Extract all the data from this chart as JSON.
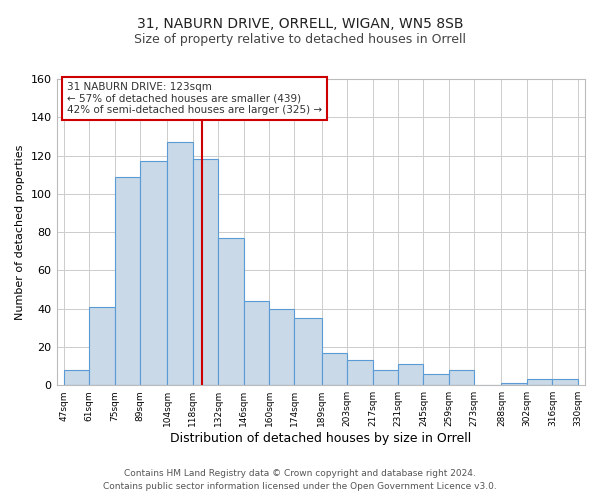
{
  "title1": "31, NABURN DRIVE, ORRELL, WIGAN, WN5 8SB",
  "title2": "Size of property relative to detached houses in Orrell",
  "xlabel": "Distribution of detached houses by size in Orrell",
  "ylabel": "Number of detached properties",
  "footer1": "Contains HM Land Registry data © Crown copyright and database right 2024.",
  "footer2": "Contains public sector information licensed under the Open Government Licence v3.0.",
  "bar_edges": [
    47,
    61,
    75,
    89,
    104,
    118,
    132,
    146,
    160,
    174,
    189,
    203,
    217,
    231,
    245,
    259,
    273,
    288,
    302,
    316,
    330
  ],
  "bar_heights": [
    8,
    41,
    109,
    117,
    127,
    118,
    77,
    44,
    40,
    35,
    17,
    13,
    8,
    11,
    6,
    8,
    0,
    1,
    3,
    3
  ],
  "bar_color": "#c9d9e8",
  "bar_edge_color": "#5b9bd5",
  "vline_x": 123,
  "vline_color": "#cc0000",
  "ylim": [
    0,
    160
  ],
  "yticks": [
    0,
    20,
    40,
    60,
    80,
    100,
    120,
    140,
    160
  ],
  "xtick_labels": [
    "47sqm",
    "61sqm",
    "75sqm",
    "89sqm",
    "104sqm",
    "118sqm",
    "132sqm",
    "146sqm",
    "160sqm",
    "174sqm",
    "189sqm",
    "203sqm",
    "217sqm",
    "231sqm",
    "245sqm",
    "259sqm",
    "273sqm",
    "288sqm",
    "302sqm",
    "316sqm",
    "330sqm"
  ],
  "annotation_title": "31 NABURN DRIVE: 123sqm",
  "annotation_line1": "← 57% of detached houses are smaller (439)",
  "annotation_line2": "42% of semi-detached houses are larger (325) →",
  "bg_color": "#ffffff",
  "grid_color": "#cccccc",
  "title1_fontsize": 10,
  "title2_fontsize": 9,
  "xlabel_fontsize": 9,
  "ylabel_fontsize": 8,
  "footer_fontsize": 6.5
}
